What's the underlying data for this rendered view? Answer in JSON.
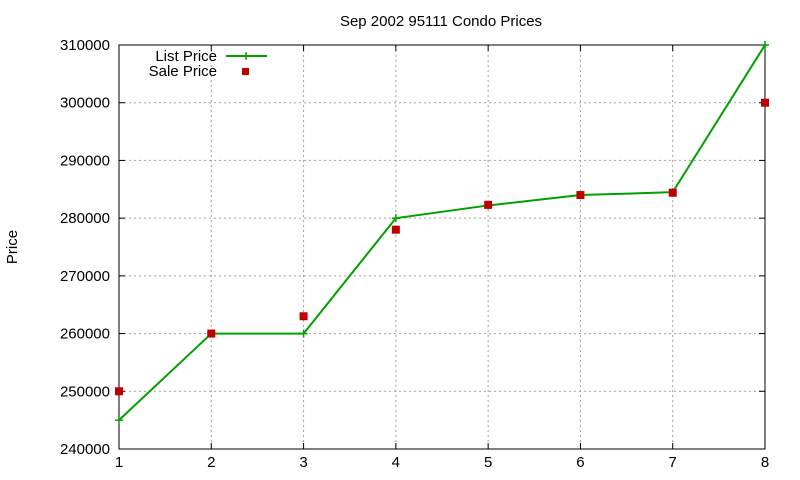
{
  "chart_data": {
    "type": "scatter",
    "title": "Sep 2002 95111 Condo Prices",
    "xlabel": "",
    "ylabel": "Price",
    "xlim": [
      1,
      8
    ],
    "ylim": [
      240000,
      310000
    ],
    "x_ticks": [
      1,
      2,
      3,
      4,
      5,
      6,
      7,
      8
    ],
    "y_ticks": [
      240000,
      250000,
      260000,
      270000,
      280000,
      290000,
      300000,
      310000
    ],
    "grid": true,
    "legend_position": "top-left",
    "series": [
      {
        "name": "List Price",
        "style": "line-with-plus-markers",
        "color": "#00a000",
        "x": [
          1,
          2,
          3,
          4,
          5,
          6,
          7,
          8
        ],
        "y": [
          245000,
          260000,
          260000,
          280000,
          282200,
          284000,
          284500,
          310000
        ]
      },
      {
        "name": "Sale Price",
        "style": "square-markers",
        "color": "#c00000",
        "x": [
          1,
          2,
          3,
          4,
          5,
          6,
          7,
          8
        ],
        "y": [
          250000,
          260000,
          263000,
          278000,
          282300,
          284000,
          284400,
          300000
        ]
      }
    ]
  }
}
